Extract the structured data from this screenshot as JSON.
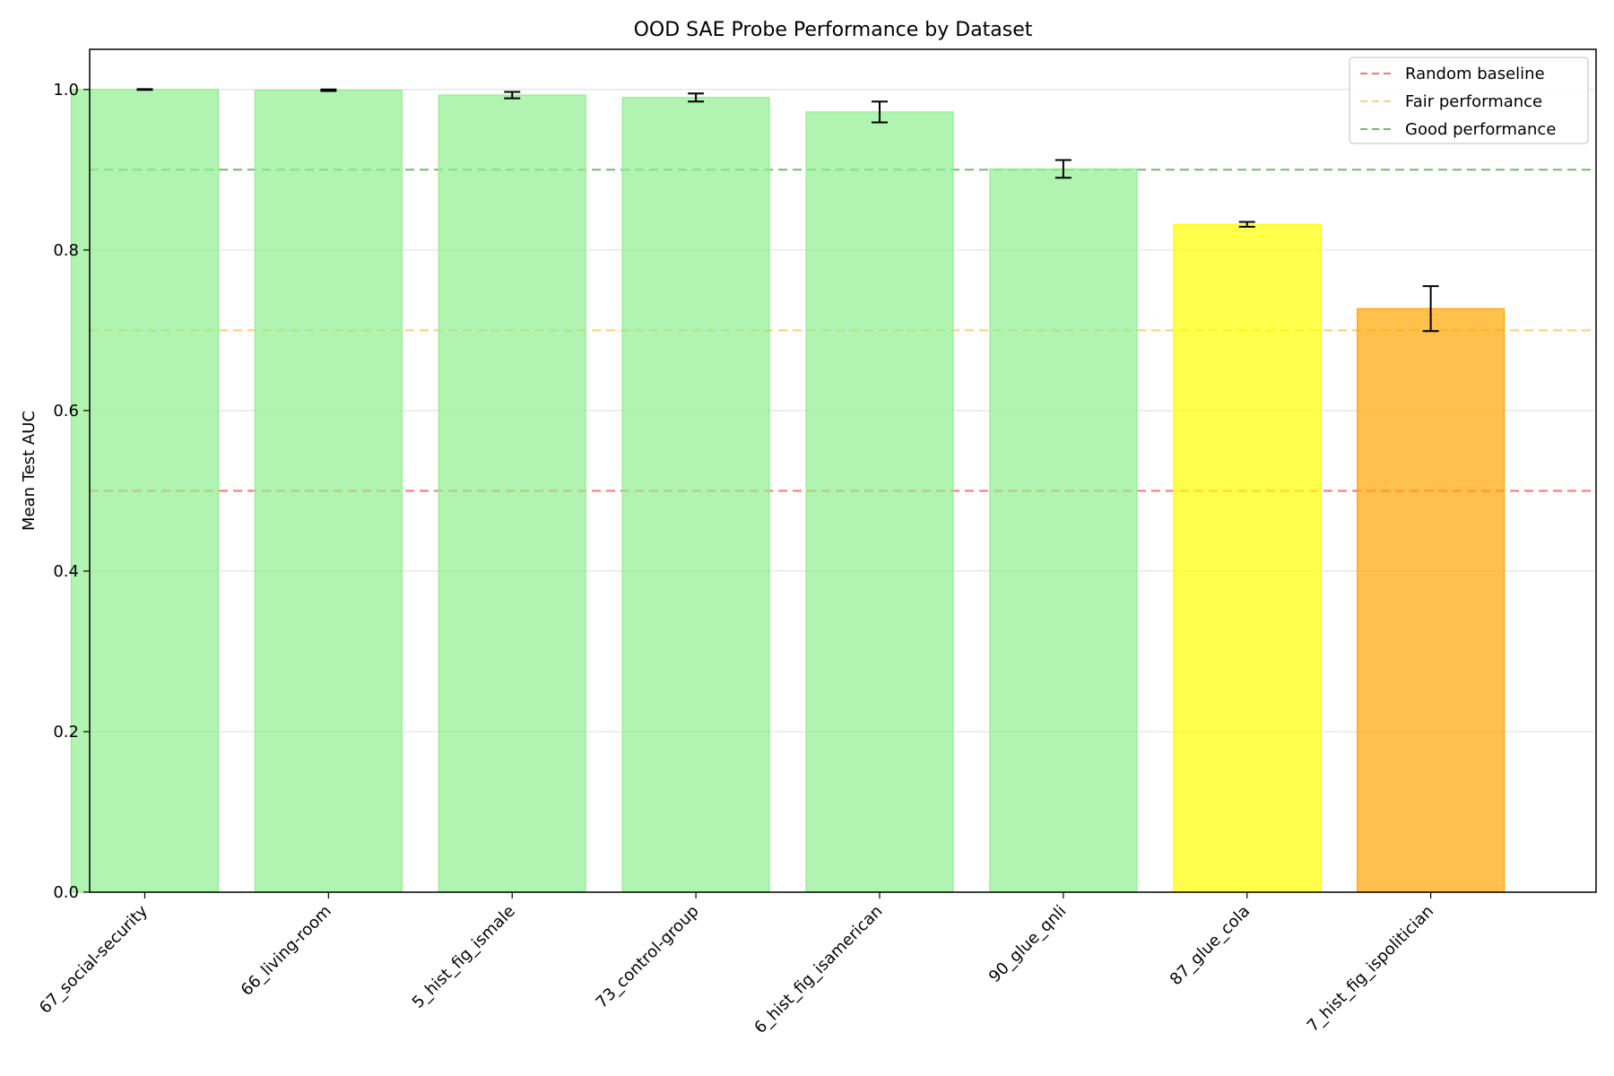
{
  "chart_data": {
    "type": "bar",
    "title": "OOD SAE Probe Performance by Dataset",
    "xlabel": "",
    "ylabel": "Mean Test AUC",
    "ylim": [
      0,
      1.05
    ],
    "yticks": [
      0.0,
      0.2,
      0.4,
      0.6,
      0.8,
      1.0
    ],
    "ytick_labels": [
      "0.0",
      "0.2",
      "0.4",
      "0.6",
      "0.8",
      "1.0"
    ],
    "grid": "y",
    "legend_position": "top-right",
    "categories": [
      "67_social-security",
      "66_living-room",
      "5_hist_fig_ismale",
      "73_control-group",
      "6_hist_fig_isamerican",
      "90_glue_qnli",
      "87_glue_cola",
      "7_hist_fig_ispolitician"
    ],
    "values": [
      1.0,
      0.999,
      0.993,
      0.99,
      0.972,
      0.901,
      0.832,
      0.727
    ],
    "errors": [
      0.0005,
      0.001,
      0.004,
      0.005,
      0.013,
      0.011,
      0.003,
      0.028
    ],
    "bar_colors": [
      "#90ee90",
      "#90ee90",
      "#90ee90",
      "#90ee90",
      "#90ee90",
      "#90ee90",
      "#ffff00",
      "#ffa500"
    ],
    "reference_lines": [
      {
        "name": "Random baseline",
        "y": 0.5,
        "color": "#ff0000"
      },
      {
        "name": "Fair performance",
        "y": 0.7,
        "color": "#ffa500"
      },
      {
        "name": "Good performance",
        "y": 0.9,
        "color": "#008000"
      }
    ]
  }
}
